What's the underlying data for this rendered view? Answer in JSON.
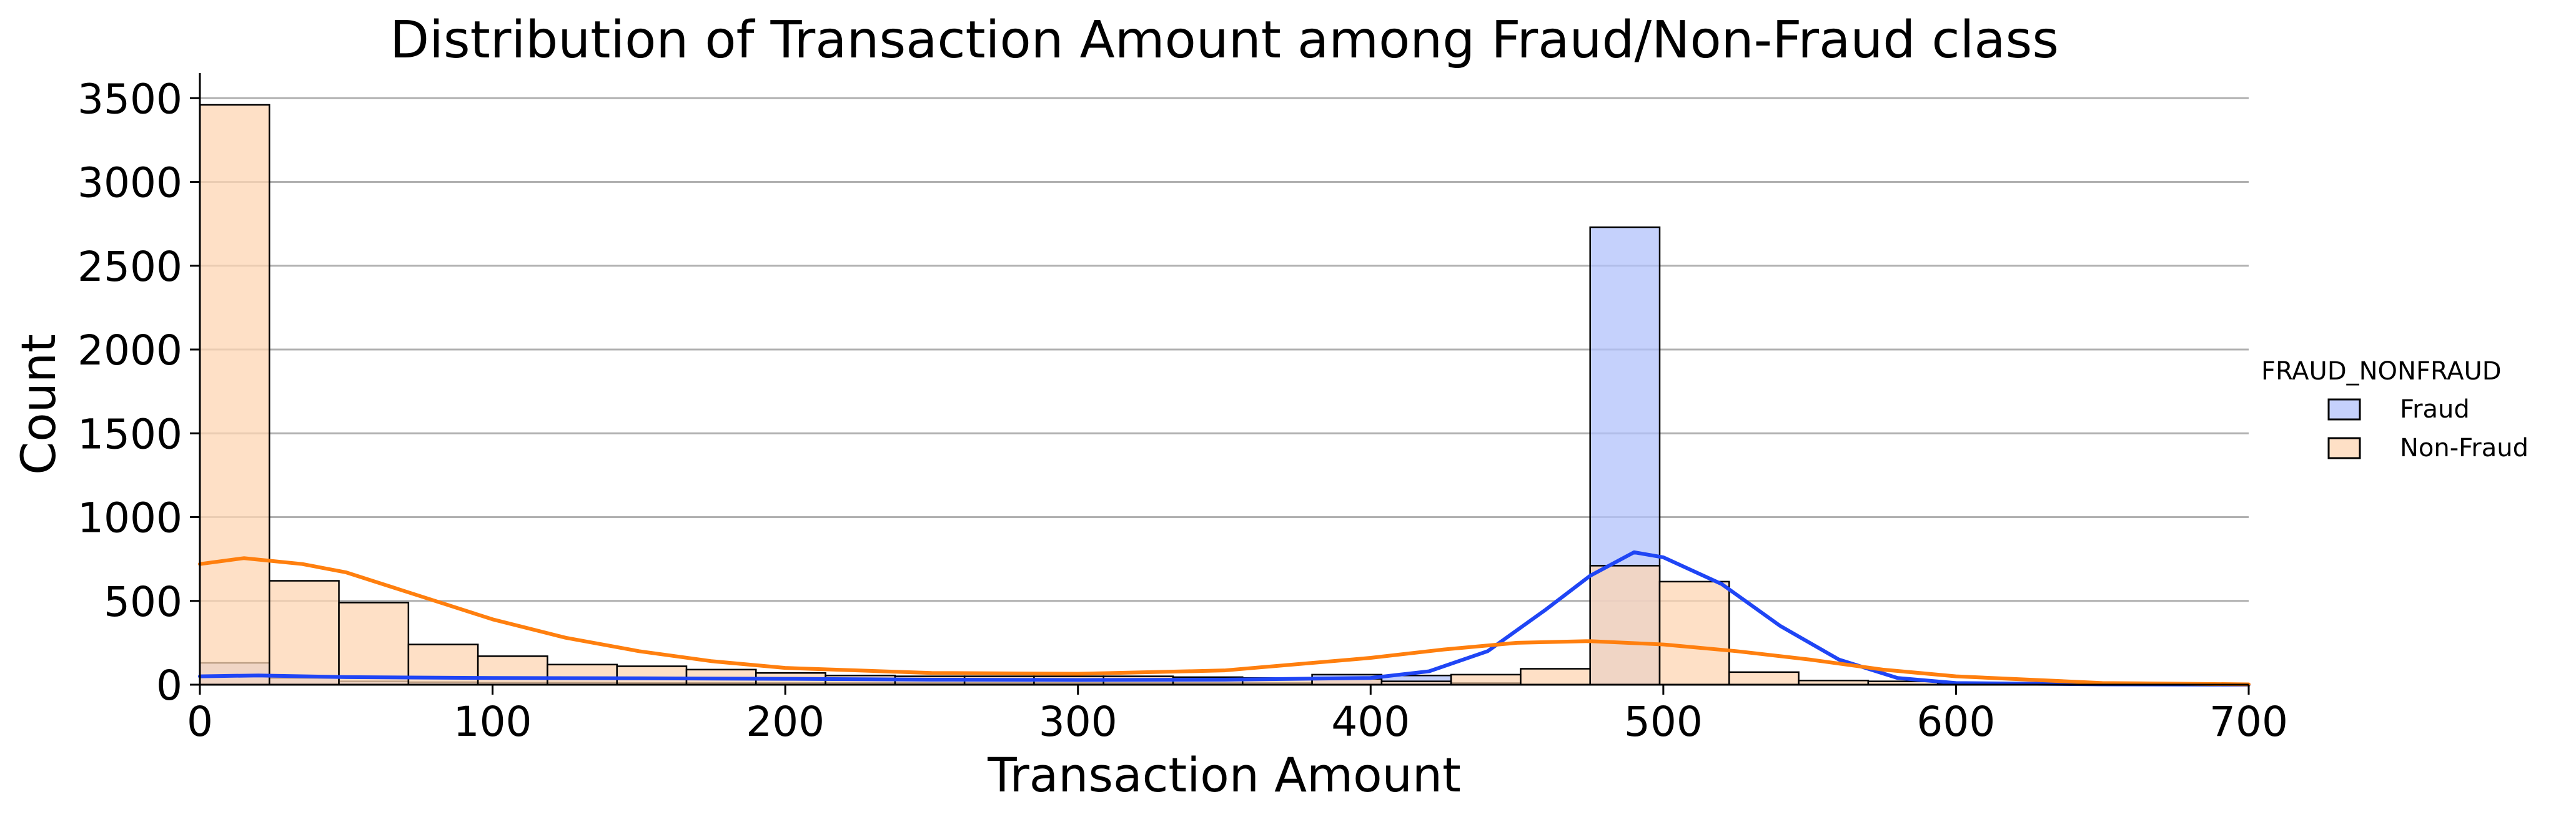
{
  "chart_data": {
    "type": "histogram",
    "title": "Distribution of Transaction Amount among Fraud/Non-Fraud class",
    "xlabel": "Transaction Amount",
    "ylabel": "Count",
    "xlim": [
      0,
      700
    ],
    "ylim": [
      0,
      3650
    ],
    "x_ticks": [
      0,
      100,
      200,
      300,
      400,
      500,
      600,
      700
    ],
    "y_ticks": [
      0,
      500,
      1000,
      1500,
      2000,
      2500,
      3000,
      3500
    ],
    "grid": "horizontal",
    "bin_width": 23.75,
    "bin_edges": [
      0,
      23.75,
      47.5,
      71.25,
      95,
      118.75,
      142.5,
      166.25,
      190,
      213.75,
      237.5,
      261.25,
      285,
      308.75,
      332.5,
      356.25,
      380,
      403.75,
      427.5,
      451.25,
      475,
      498.75,
      522.5,
      546.25,
      570,
      593.75,
      617.5,
      641.25,
      665,
      688.75
    ],
    "legend": {
      "title": "FRAUD_NONFRAUD",
      "position": "right"
    },
    "series": [
      {
        "name": "Fraud",
        "bar_color": "#b1c1fb",
        "line_color": "#1f45f5",
        "counts": [
          130,
          40,
          20,
          15,
          12,
          12,
          10,
          10,
          10,
          10,
          10,
          10,
          10,
          10,
          10,
          10,
          60,
          55,
          10,
          0,
          2730,
          0,
          0,
          0,
          0,
          0,
          0,
          0,
          0
        ],
        "kde": {
          "x": [
            0,
            20,
            50,
            100,
            150,
            200,
            250,
            300,
            350,
            400,
            420,
            440,
            460,
            475,
            490,
            500,
            520,
            540,
            560,
            580,
            600,
            650,
            700
          ],
          "y": [
            50,
            55,
            45,
            40,
            38,
            35,
            30,
            28,
            30,
            40,
            80,
            200,
            450,
            650,
            790,
            760,
            600,
            350,
            150,
            40,
            10,
            2,
            0
          ]
        }
      },
      {
        "name": "Non-Fraud",
        "bar_color": "#fed5b3",
        "line_color": "#ff7f0e",
        "counts": [
          3460,
          620,
          490,
          240,
          170,
          120,
          110,
          90,
          70,
          55,
          50,
          50,
          50,
          50,
          45,
          40,
          35,
          20,
          60,
          95,
          710,
          615,
          75,
          25,
          20,
          10,
          5,
          2,
          1
        ],
        "kde": {
          "x": [
            0,
            15,
            35,
            50,
            75,
            100,
            125,
            150,
            175,
            200,
            250,
            300,
            350,
            400,
            425,
            450,
            475,
            500,
            525,
            550,
            575,
            600,
            650,
            700
          ],
          "y": [
            720,
            755,
            720,
            670,
            530,
            390,
            280,
            200,
            140,
            100,
            70,
            65,
            85,
            160,
            210,
            250,
            260,
            240,
            200,
            150,
            90,
            50,
            10,
            2
          ]
        }
      }
    ]
  }
}
